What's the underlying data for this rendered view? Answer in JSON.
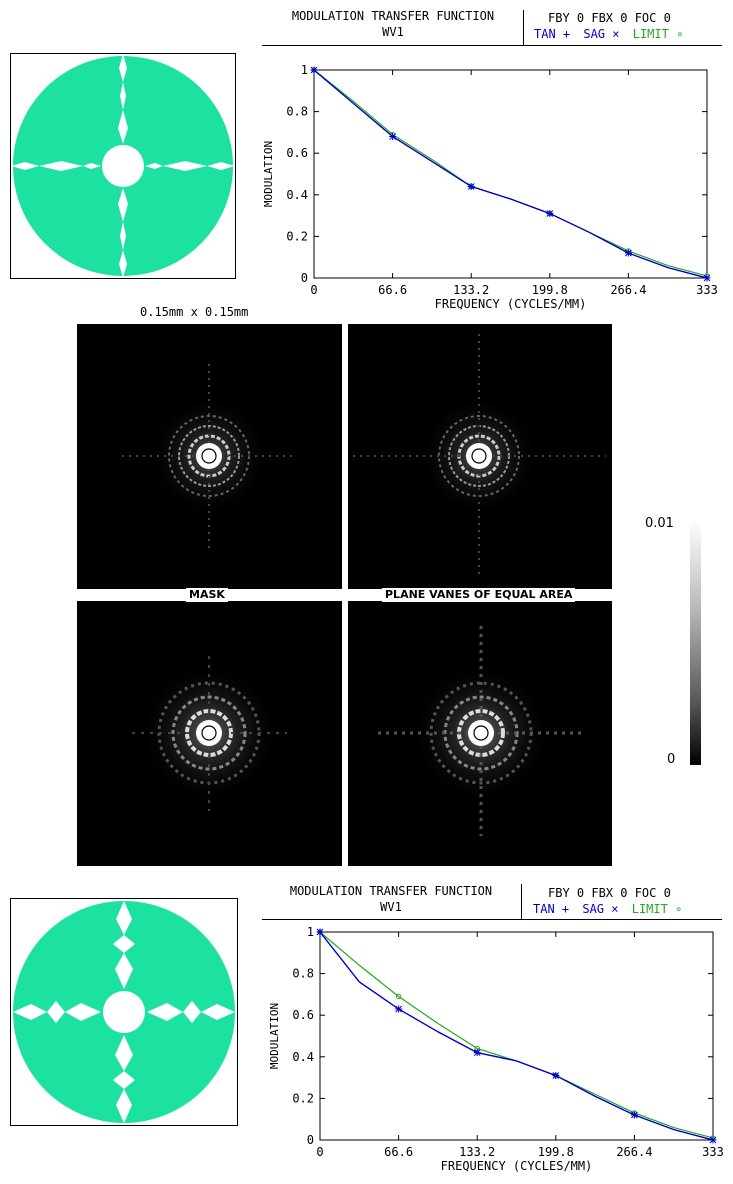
{
  "top": {
    "header": {
      "title_line1": "MODULATION TRANSFER FUNCTION",
      "title_line2": "WV1",
      "right_line1": "FBY 0 FBX 0 FOC 0",
      "legend_tan": "TAN +",
      "legend_sag": "SAG ×",
      "legend_limit": "LIMIT ∘"
    }
  },
  "bottom": {
    "header": {
      "title_line1": "MODULATION TRANSFER FUNCTION",
      "title_line2": "WV1",
      "right_line1": "FBY 0 FBX 0 FOC 0",
      "legend_tan": "TAN +",
      "legend_sag": "SAG ×",
      "legend_limit": "LIMIT ∘"
    }
  },
  "psf": {
    "scale_caption": "0.15mm x 0.15mm",
    "mask_label": "MASK",
    "vanes_label": "PLANE VANES OF EQUAL AREA",
    "colorbar_max": "0.01",
    "colorbar_min": "0"
  },
  "colors": {
    "pupil_fill": "#1de1a0",
    "tan": "#0000cc",
    "sag": "#0000cc",
    "limit": "#22aa22"
  },
  "chart_data": [
    {
      "type": "line",
      "xlabel": "FREQUENCY (CYCLES/MM)",
      "ylabel": "MODULATION",
      "x_ticks": [
        "0",
        "66.6",
        "133.2",
        "199.8",
        "266.4",
        "333"
      ],
      "y_ticks": [
        "0",
        "0.2",
        "0.4",
        "0.6",
        "0.8",
        "1"
      ],
      "xlim": [
        0,
        333
      ],
      "ylim": [
        0,
        1
      ],
      "series": [
        {
          "name": "TAN",
          "x": [
            0,
            33.3,
            66.6,
            100,
            133.2,
            166.5,
            199.8,
            233.1,
            266.4,
            299.7,
            333
          ],
          "y": [
            1,
            0.84,
            0.68,
            0.56,
            0.44,
            0.38,
            0.31,
            0.22,
            0.12,
            0.05,
            0
          ]
        },
        {
          "name": "SAG",
          "x": [
            0,
            33.3,
            66.6,
            100,
            133.2,
            166.5,
            199.8,
            233.1,
            266.4,
            299.7,
            333
          ],
          "y": [
            1,
            0.84,
            0.68,
            0.56,
            0.44,
            0.38,
            0.31,
            0.22,
            0.12,
            0.05,
            0
          ]
        },
        {
          "name": "LIMIT",
          "x": [
            0,
            33.3,
            66.6,
            100,
            133.2,
            166.5,
            199.8,
            233.1,
            266.4,
            299.7,
            333
          ],
          "y": [
            1,
            0.85,
            0.69,
            0.57,
            0.44,
            0.38,
            0.31,
            0.22,
            0.13,
            0.06,
            0.01
          ]
        }
      ]
    },
    {
      "type": "line",
      "xlabel": "FREQUENCY (CYCLES/MM)",
      "ylabel": "MODULATION",
      "x_ticks": [
        "0",
        "66.6",
        "133.2",
        "199.8",
        "266.4",
        "333"
      ],
      "y_ticks": [
        "0",
        "0.2",
        "0.4",
        "0.6",
        "0.8",
        "1"
      ],
      "xlim": [
        0,
        333
      ],
      "ylim": [
        0,
        1
      ],
      "series": [
        {
          "name": "TAN",
          "x": [
            0,
            33.3,
            66.6,
            100,
            133.2,
            166.5,
            199.8,
            233.1,
            266.4,
            299.7,
            333
          ],
          "y": [
            1,
            0.76,
            0.63,
            0.52,
            0.42,
            0.38,
            0.31,
            0.21,
            0.12,
            0.05,
            0
          ]
        },
        {
          "name": "SAG",
          "x": [
            0,
            33.3,
            66.6,
            100,
            133.2,
            166.5,
            199.8,
            233.1,
            266.4,
            299.7,
            333
          ],
          "y": [
            1,
            0.76,
            0.63,
            0.52,
            0.42,
            0.38,
            0.31,
            0.21,
            0.12,
            0.05,
            0
          ]
        },
        {
          "name": "LIMIT",
          "x": [
            0,
            33.3,
            66.6,
            100,
            133.2,
            166.5,
            199.8,
            233.1,
            266.4,
            299.7,
            333
          ],
          "y": [
            1,
            0.84,
            0.69,
            0.56,
            0.44,
            0.38,
            0.31,
            0.22,
            0.13,
            0.06,
            0.01
          ]
        }
      ]
    }
  ]
}
